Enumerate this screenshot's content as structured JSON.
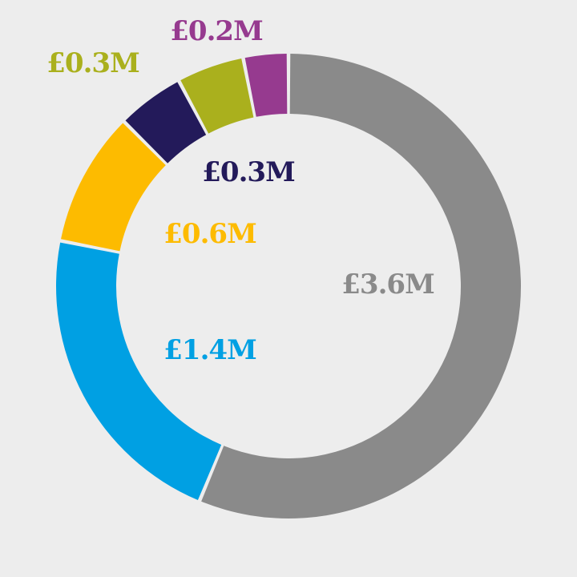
{
  "chart_data": {
    "type": "pie",
    "variant": "donut",
    "title": "",
    "slices": [
      {
        "label": "£3.6M",
        "value": 3.6,
        "color": "#8a8a8a"
      },
      {
        "label": "£1.4M",
        "value": 1.4,
        "color": "#00a0e3"
      },
      {
        "label": "£0.6M",
        "value": 0.6,
        "color": "#fdbb00"
      },
      {
        "label": "£0.3M",
        "value": 0.3,
        "color": "#231a5a"
      },
      {
        "label": "£0.3M",
        "value": 0.3,
        "color": "#aab01d"
      },
      {
        "label": "£0.2M",
        "value": 0.2,
        "color": "#963a8f"
      }
    ],
    "background": "#ededed",
    "legend": "none"
  }
}
